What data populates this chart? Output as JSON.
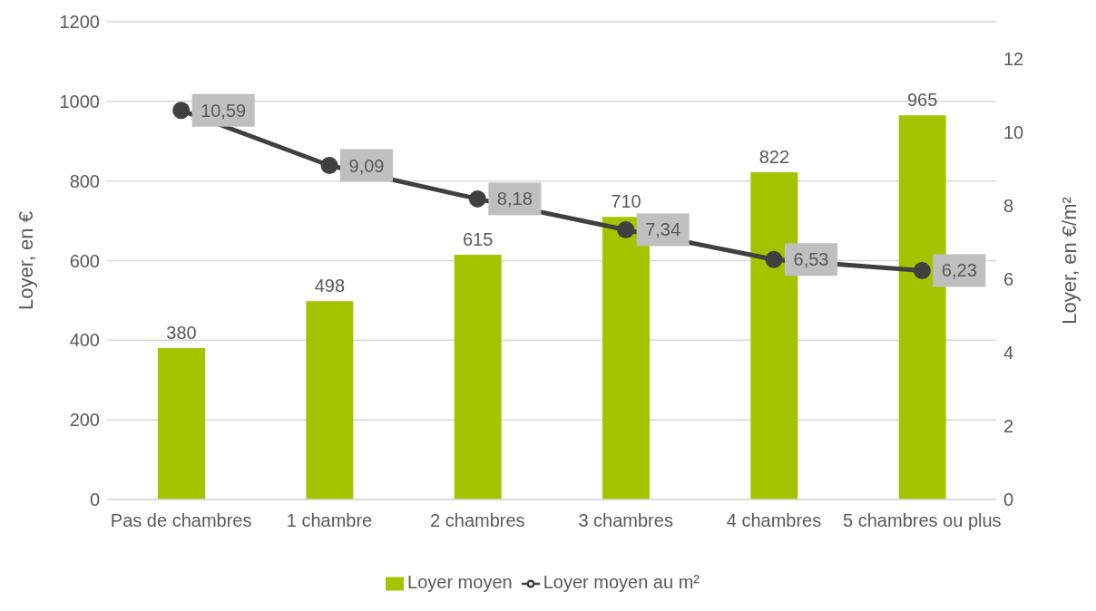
{
  "chart_data": {
    "type": "bar",
    "categories": [
      "Pas de chambres",
      "1 chambre",
      "2 chambres",
      "3 chambres",
      "4 chambres",
      "5 chambres ou plus"
    ],
    "series": [
      {
        "name": "Loyer moyen",
        "color": "#a5c400",
        "values": [
          380,
          498,
          615,
          710,
          822,
          965
        ]
      },
      {
        "name": "Loyer moyen au m²",
        "type": "line",
        "axis": "y2",
        "color": "#404040",
        "values": [
          10.59,
          9.09,
          8.18,
          7.34,
          6.53,
          6.23
        ],
        "value_labels": [
          "10,59",
          "9,09",
          "8,18",
          "7,34",
          "6,53",
          "6,23"
        ]
      }
    ],
    "ylabel": "Loyer, en €",
    "y2label": "Loyer, en €/m²",
    "ylim": [
      0,
      1200
    ],
    "yticks": [
      0,
      200,
      400,
      600,
      800,
      1000,
      1200
    ],
    "y2lim": [
      0,
      13
    ],
    "y2ticks": [
      0,
      2,
      4,
      6,
      8,
      10,
      12
    ],
    "grid": "y",
    "legend": "bottom",
    "marker": "circle",
    "line_style": "solid",
    "data_labels": true
  }
}
